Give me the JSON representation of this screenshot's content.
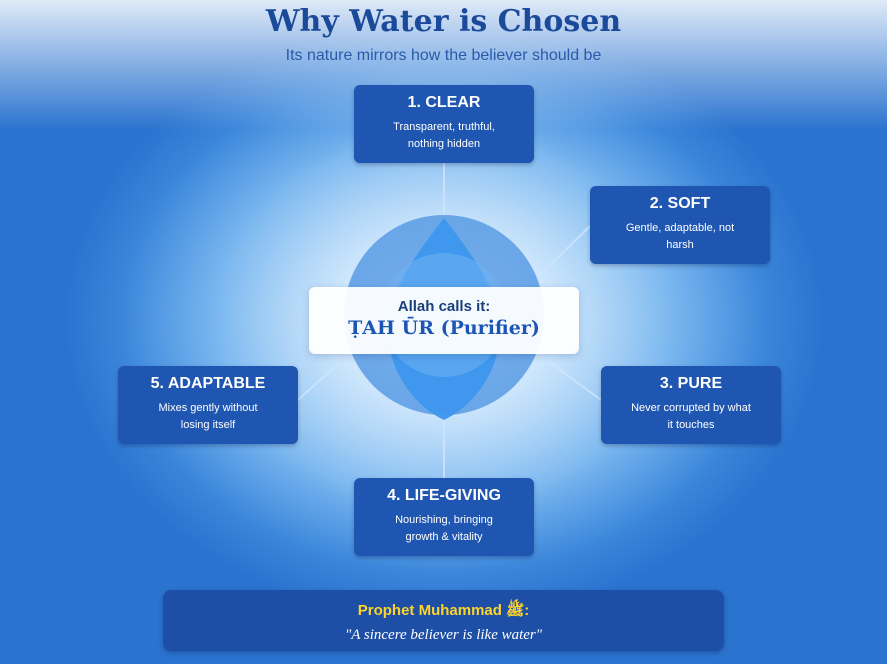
{
  "header": {
    "title": "Why Water is Chosen",
    "subtitle": "Its nature mirrors how the believer should be"
  },
  "center": {
    "line1": "Allah calls it:",
    "line2": "ṬAH ŪR (Purifier)"
  },
  "qualities": [
    {
      "title": "1. CLEAR",
      "desc": "Transparent, truthful, nothing hidden"
    },
    {
      "title": "2. SOFT",
      "desc": "Gentle, adaptable, not harsh"
    },
    {
      "title": "3. PURE",
      "desc": "Never corrupted by what it touches"
    },
    {
      "title": "4. LIFE-GIVING",
      "desc": "Nourishing, bringing growth & vitality"
    },
    {
      "title": "5. ADAPTABLE",
      "desc": "Mixes gently without losing itself"
    }
  ],
  "quote": {
    "attribution": "Prophet Muhammad ﷺ:",
    "text": "\"A sincere believer is like water\""
  },
  "colors": {
    "card": "#1f56b1",
    "title": "#1b4a9a",
    "accent": "#ffd42a",
    "drop": "#3d97ee"
  },
  "icons": [
    "water-drop-icon"
  ]
}
